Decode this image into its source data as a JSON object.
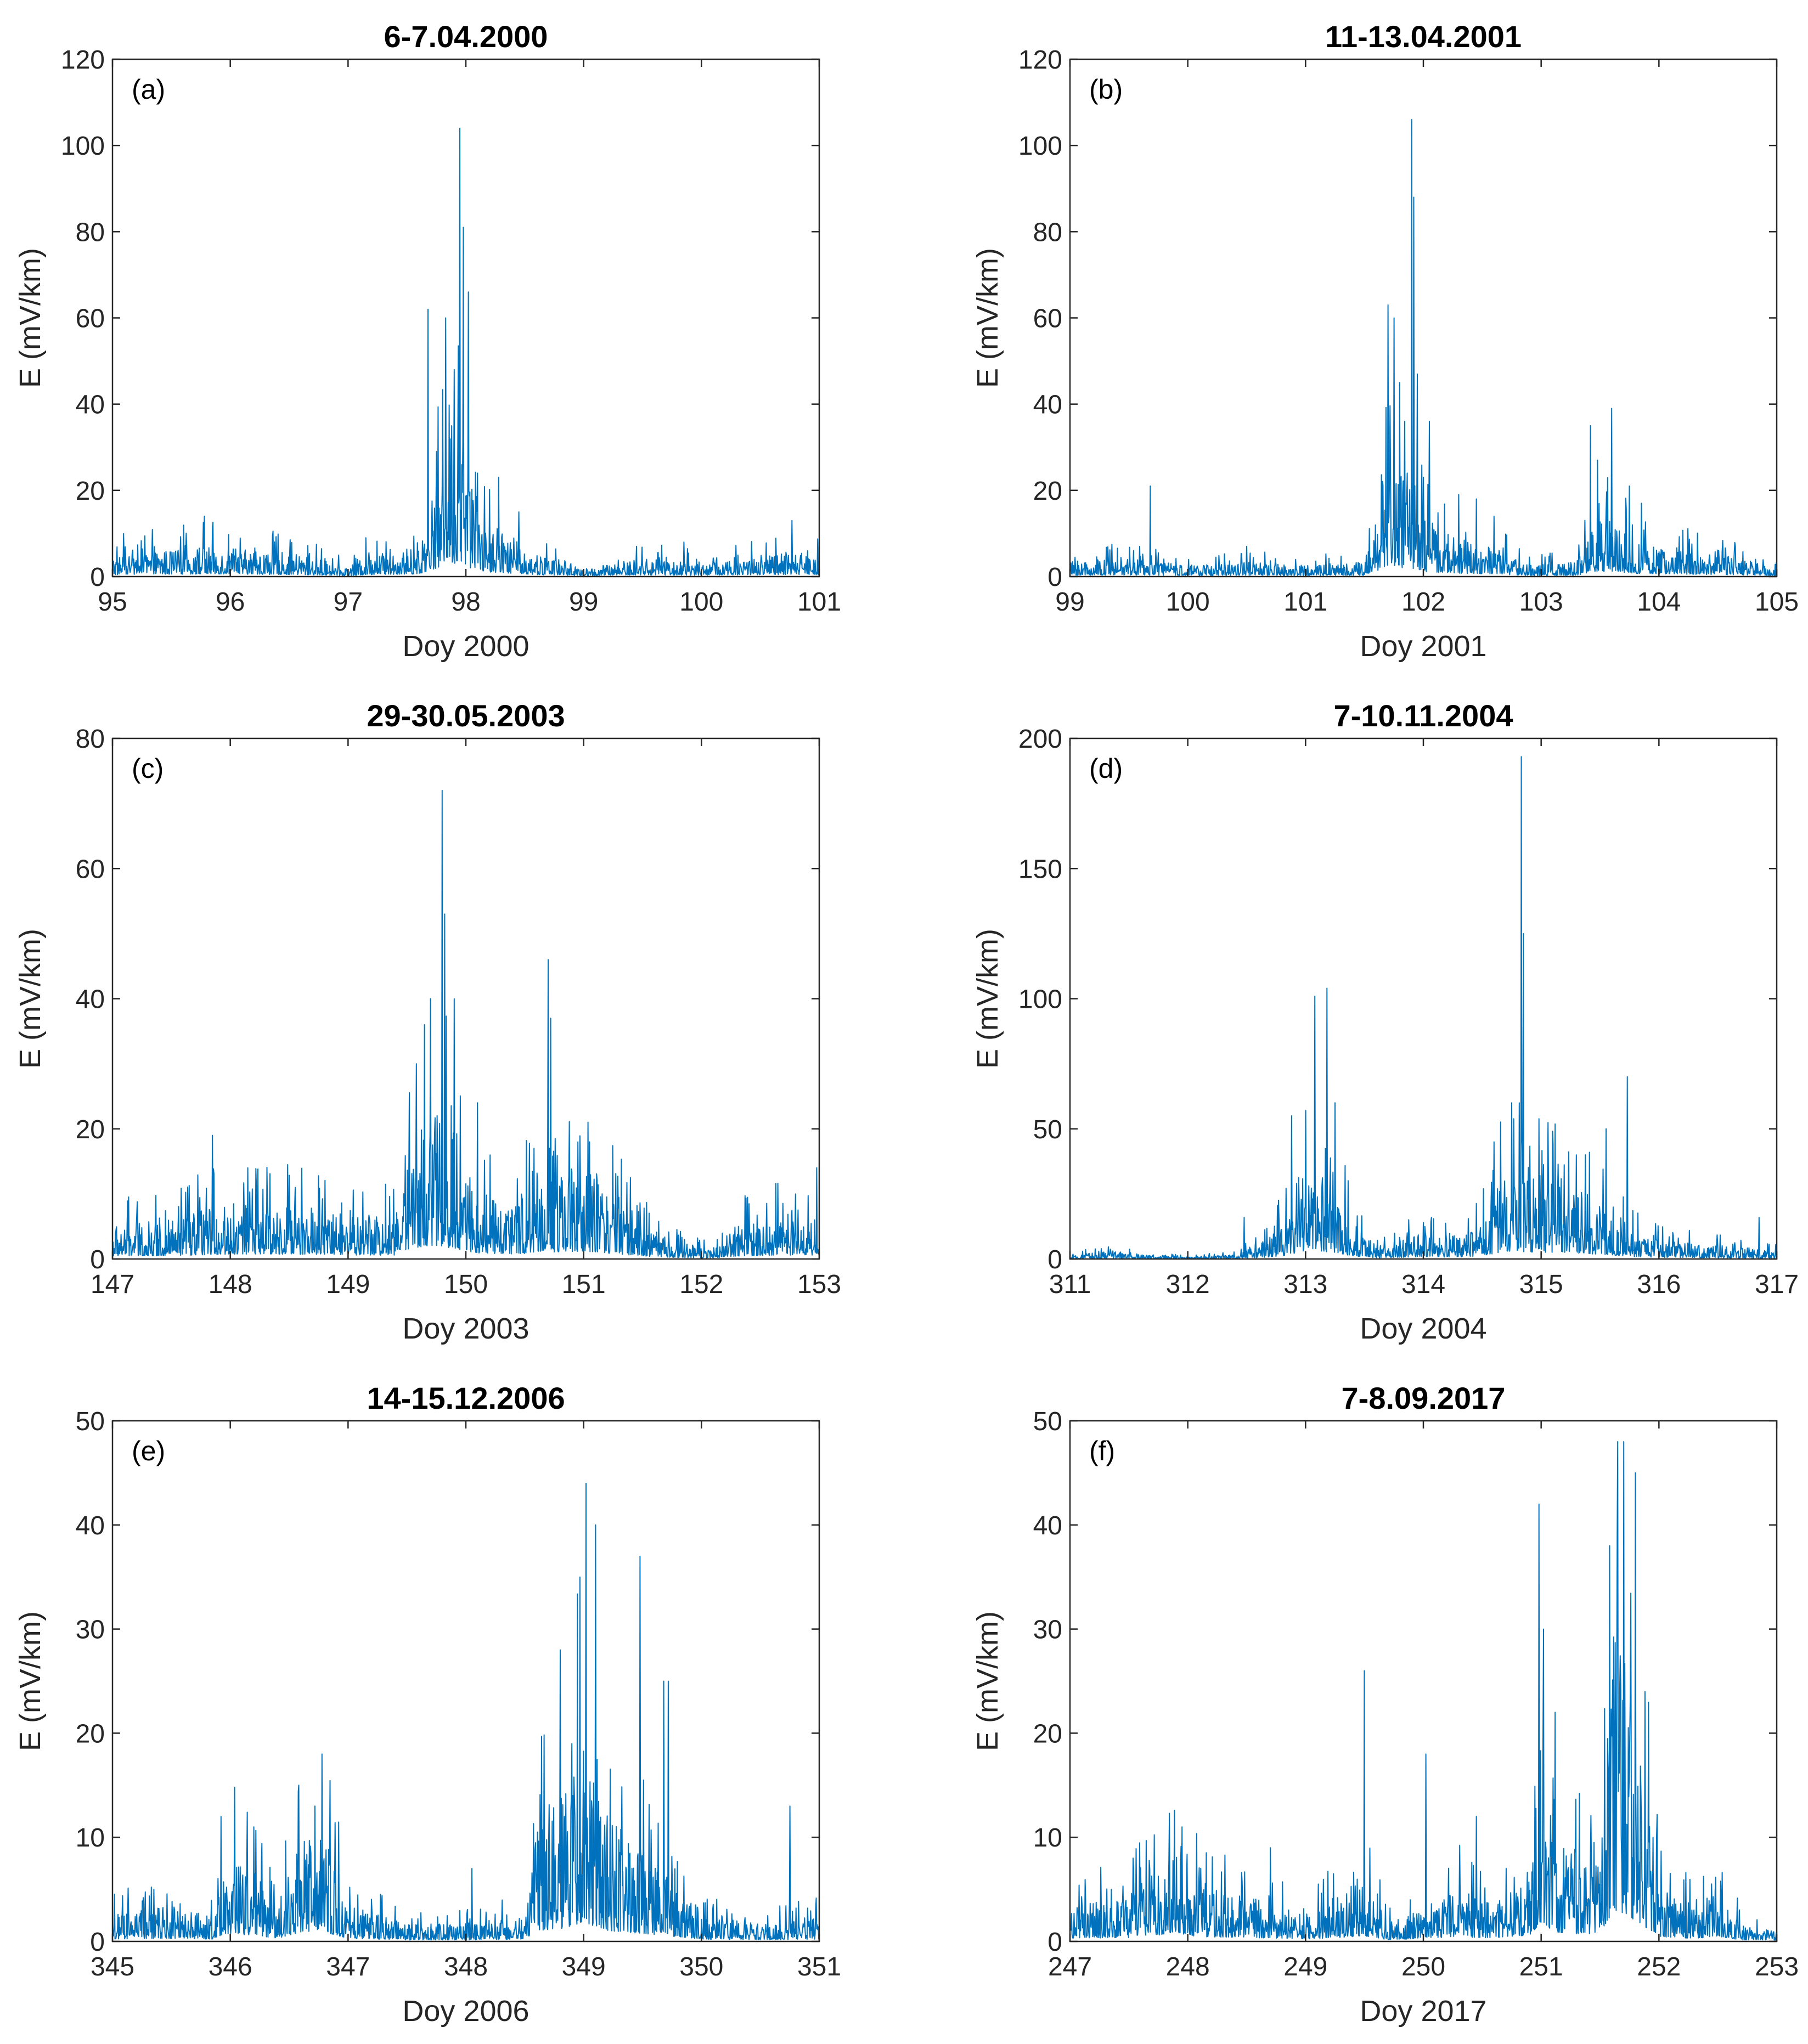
{
  "figure": {
    "line_color": "#0072BD"
  },
  "chart_data": [
    {
      "type": "line",
      "panel": "(a)",
      "title": "6-7.04.2000",
      "xlabel": "Doy 2000",
      "ylabel": "E (mV/km)",
      "xlim": [
        95,
        101
      ],
      "ylim": [
        0,
        120
      ],
      "xticks": [
        95,
        96,
        97,
        98,
        99,
        100,
        101
      ],
      "yticks": [
        0,
        20,
        40,
        60,
        80,
        100,
        120
      ],
      "baseline": [
        [
          95.0,
          3
        ],
        [
          95.8,
          4
        ],
        [
          96.2,
          3.5
        ],
        [
          96.6,
          3
        ],
        [
          97.0,
          1.2
        ],
        [
          97.2,
          3
        ],
        [
          97.6,
          4
        ],
        [
          97.7,
          10
        ],
        [
          97.8,
          16
        ],
        [
          97.95,
          22
        ],
        [
          98.05,
          12
        ],
        [
          98.2,
          7
        ],
        [
          98.4,
          5
        ],
        [
          98.6,
          3
        ],
        [
          98.8,
          2
        ],
        [
          99.0,
          1
        ],
        [
          99.5,
          2.5
        ],
        [
          100.0,
          2
        ],
        [
          100.5,
          3
        ],
        [
          101.0,
          3
        ]
      ],
      "spikes": [
        [
          95.78,
          14
        ],
        [
          97.15,
          9
        ],
        [
          97.68,
          62
        ],
        [
          97.75,
          29
        ],
        [
          97.83,
          60
        ],
        [
          97.88,
          35
        ],
        [
          97.9,
          48
        ],
        [
          97.95,
          104
        ],
        [
          97.98,
          81
        ],
        [
          98.02,
          66
        ],
        [
          98.1,
          24
        ],
        [
          98.28,
          23
        ],
        [
          98.45,
          15
        ],
        [
          99.45,
          7
        ],
        [
          99.85,
          8
        ],
        [
          100.77,
          13
        ],
        [
          100.9,
          6
        ]
      ]
    },
    {
      "type": "line",
      "panel": "(b)",
      "title": "11-13.04.2001",
      "xlabel": "Doy 2001",
      "ylabel": "E (mV/km)",
      "xlim": [
        99,
        105
      ],
      "ylim": [
        0,
        120
      ],
      "xticks": [
        99,
        100,
        101,
        102,
        103,
        104,
        105
      ],
      "yticks": [
        0,
        20,
        40,
        60,
        80,
        100,
        120
      ],
      "baseline": [
        [
          99.0,
          2
        ],
        [
          99.5,
          2.5
        ],
        [
          100.0,
          1.5
        ],
        [
          100.5,
          2
        ],
        [
          101.0,
          1.5
        ],
        [
          101.5,
          2
        ],
        [
          101.6,
          8
        ],
        [
          101.7,
          18
        ],
        [
          101.8,
          14
        ],
        [
          101.9,
          12
        ],
        [
          102.0,
          8
        ],
        [
          102.3,
          5
        ],
        [
          102.6,
          4
        ],
        [
          102.9,
          1.5
        ],
        [
          103.3,
          2
        ],
        [
          103.45,
          8
        ],
        [
          103.6,
          8
        ],
        [
          103.8,
          5
        ],
        [
          104.0,
          4
        ],
        [
          104.5,
          3
        ],
        [
          104.8,
          2
        ],
        [
          105.0,
          1
        ]
      ],
      "spikes": [
        [
          99.68,
          21
        ],
        [
          100.5,
          7
        ],
        [
          101.7,
          63
        ],
        [
          101.75,
          60
        ],
        [
          101.8,
          45
        ],
        [
          101.84,
          36
        ],
        [
          101.9,
          106
        ],
        [
          101.92,
          88
        ],
        [
          101.95,
          47
        ],
        [
          102.05,
          36
        ],
        [
          102.3,
          19
        ],
        [
          102.45,
          18
        ],
        [
          102.6,
          14
        ],
        [
          103.42,
          35
        ],
        [
          103.48,
          27
        ],
        [
          103.6,
          39
        ],
        [
          103.75,
          21
        ],
        [
          103.85,
          17
        ],
        [
          104.65,
          7
        ]
      ]
    },
    {
      "type": "line",
      "panel": "(c)",
      "title": "29-30.05.2003",
      "xlabel": "Doy 2003",
      "ylabel": "E (mV/km)",
      "xlim": [
        147,
        153
      ],
      "ylim": [
        0,
        80
      ],
      "xticks": [
        147,
        148,
        149,
        150,
        151,
        152,
        153
      ],
      "yticks": [
        0,
        20,
        40,
        60,
        80
      ],
      "baseline": [
        [
          147.0,
          3
        ],
        [
          147.5,
          3.5
        ],
        [
          148.0,
          5
        ],
        [
          148.5,
          5
        ],
        [
          149.0,
          4
        ],
        [
          149.4,
          4
        ],
        [
          149.5,
          10
        ],
        [
          149.7,
          14
        ],
        [
          149.9,
          11
        ],
        [
          150.1,
          6
        ],
        [
          150.4,
          5
        ],
        [
          150.7,
          7
        ],
        [
          151.0,
          8
        ],
        [
          151.2,
          6
        ],
        [
          151.5,
          3
        ],
        [
          151.8,
          1.5
        ],
        [
          152.1,
          1
        ],
        [
          152.3,
          3
        ],
        [
          152.7,
          4
        ],
        [
          153.0,
          4
        ]
      ],
      "spikes": [
        [
          147.85,
          19
        ],
        [
          148.15,
          14
        ],
        [
          148.55,
          11
        ],
        [
          149.58,
          30
        ],
        [
          149.65,
          36
        ],
        [
          149.7,
          40
        ],
        [
          149.8,
          72
        ],
        [
          149.82,
          53
        ],
        [
          149.9,
          40
        ],
        [
          150.1,
          24
        ],
        [
          150.58,
          17
        ],
        [
          150.7,
          46
        ],
        [
          150.72,
          37
        ],
        [
          150.95,
          18
        ],
        [
          151.05,
          18
        ],
        [
          152.8,
          10
        ],
        [
          152.98,
          14
        ]
      ]
    },
    {
      "type": "line",
      "panel": "(d)",
      "title": "7-10.11.2004",
      "xlabel": "Doy 2004",
      "ylabel": "E (mV/km)",
      "xlim": [
        311,
        317
      ],
      "ylim": [
        0,
        200
      ],
      "xticks": [
        311,
        312,
        313,
        314,
        315,
        316,
        317
      ],
      "yticks": [
        0,
        50,
        100,
        150,
        200
      ],
      "baseline": [
        [
          311.0,
          0.5
        ],
        [
          311.3,
          2
        ],
        [
          311.6,
          1
        ],
        [
          312.0,
          0.5
        ],
        [
          312.4,
          1
        ],
        [
          312.6,
          3
        ],
        [
          312.8,
          8
        ],
        [
          313.0,
          20
        ],
        [
          313.2,
          18
        ],
        [
          313.4,
          8
        ],
        [
          313.6,
          3
        ],
        [
          313.8,
          4
        ],
        [
          314.0,
          6
        ],
        [
          314.3,
          5
        ],
        [
          314.5,
          8
        ],
        [
          314.7,
          20
        ],
        [
          314.9,
          18
        ],
        [
          315.2,
          16
        ],
        [
          315.5,
          12
        ],
        [
          315.8,
          6
        ],
        [
          316.0,
          4
        ],
        [
          316.5,
          3
        ],
        [
          317.0,
          2
        ]
      ],
      "spikes": [
        [
          312.48,
          16
        ],
        [
          312.88,
          55
        ],
        [
          313.0,
          57
        ],
        [
          313.08,
          101
        ],
        [
          313.18,
          104
        ],
        [
          313.25,
          60
        ],
        [
          314.6,
          45
        ],
        [
          314.75,
          60
        ],
        [
          314.83,
          193
        ],
        [
          314.85,
          125
        ],
        [
          315.1,
          44
        ],
        [
          315.3,
          40
        ],
        [
          315.55,
          50
        ],
        [
          315.73,
          70
        ],
        [
          316.85,
          16
        ]
      ]
    },
    {
      "type": "line",
      "panel": "(e)",
      "title": "14-15.12.2006",
      "xlabel": "Doy 2006",
      "ylabel": "E (mV/km)",
      "xlim": [
        345,
        351
      ],
      "ylim": [
        0,
        50
      ],
      "xticks": [
        345,
        346,
        347,
        348,
        349,
        350,
        351
      ],
      "yticks": [
        0,
        10,
        20,
        30,
        40,
        50
      ],
      "baseline": [
        [
          345.0,
          1.5
        ],
        [
          345.5,
          2
        ],
        [
          345.85,
          1.5
        ],
        [
          345.95,
          5
        ],
        [
          346.2,
          4
        ],
        [
          346.4,
          2
        ],
        [
          346.6,
          6
        ],
        [
          346.8,
          6
        ],
        [
          347.0,
          2
        ],
        [
          347.5,
          1
        ],
        [
          348.0,
          1
        ],
        [
          348.5,
          1.5
        ],
        [
          348.6,
          7
        ],
        [
          348.8,
          8
        ],
        [
          349.0,
          12
        ],
        [
          349.2,
          7
        ],
        [
          349.5,
          5
        ],
        [
          349.8,
          3
        ],
        [
          350.0,
          1.5
        ],
        [
          350.5,
          1
        ],
        [
          351.0,
          1.5
        ]
      ],
      "spikes": [
        [
          345.92,
          12
        ],
        [
          346.2,
          11
        ],
        [
          346.58,
          15
        ],
        [
          346.72,
          13
        ],
        [
          346.78,
          18
        ],
        [
          348.05,
          7
        ],
        [
          348.8,
          28
        ],
        [
          348.9,
          19
        ],
        [
          348.97,
          35
        ],
        [
          349.02,
          44
        ],
        [
          349.1,
          40
        ],
        [
          349.48,
          37
        ],
        [
          349.68,
          25
        ],
        [
          349.72,
          25
        ],
        [
          350.75,
          13
        ]
      ]
    },
    {
      "type": "line",
      "panel": "(f)",
      "title": "7-8.09.2017",
      "xlabel": "Doy 2017",
      "ylabel": "E (mV/km)",
      "xlim": [
        247,
        253
      ],
      "ylim": [
        0,
        50
      ],
      "xticks": [
        247,
        248,
        249,
        250,
        251,
        252,
        253
      ],
      "yticks": [
        0,
        10,
        20,
        30,
        40,
        50
      ],
      "baseline": [
        [
          247.0,
          2
        ],
        [
          247.5,
          2.5
        ],
        [
          247.9,
          5
        ],
        [
          248.1,
          3
        ],
        [
          248.5,
          2.5
        ],
        [
          249.0,
          1.5
        ],
        [
          249.3,
          2.5
        ],
        [
          249.5,
          3.5
        ],
        [
          249.7,
          1
        ],
        [
          250.0,
          2
        ],
        [
          250.3,
          3
        ],
        [
          250.6,
          2
        ],
        [
          250.9,
          4
        ],
        [
          251.0,
          12
        ],
        [
          251.1,
          6
        ],
        [
          251.3,
          5
        ],
        [
          251.5,
          5
        ],
        [
          251.6,
          18
        ],
        [
          251.8,
          14
        ],
        [
          252.0,
          3
        ],
        [
          252.3,
          2
        ],
        [
          252.5,
          3
        ],
        [
          252.7,
          1
        ],
        [
          253.0,
          0.5
        ]
      ],
      "spikes": [
        [
          247.95,
          11
        ],
        [
          248.7,
          9
        ],
        [
          249.5,
          26
        ],
        [
          250.02,
          18
        ],
        [
          250.45,
          12
        ],
        [
          250.98,
          42
        ],
        [
          251.02,
          30
        ],
        [
          251.12,
          22
        ],
        [
          251.58,
          38
        ],
        [
          251.65,
          48
        ],
        [
          251.7,
          48
        ],
        [
          251.8,
          45
        ],
        [
          251.88,
          24
        ],
        [
          251.95,
          10
        ]
      ]
    }
  ]
}
